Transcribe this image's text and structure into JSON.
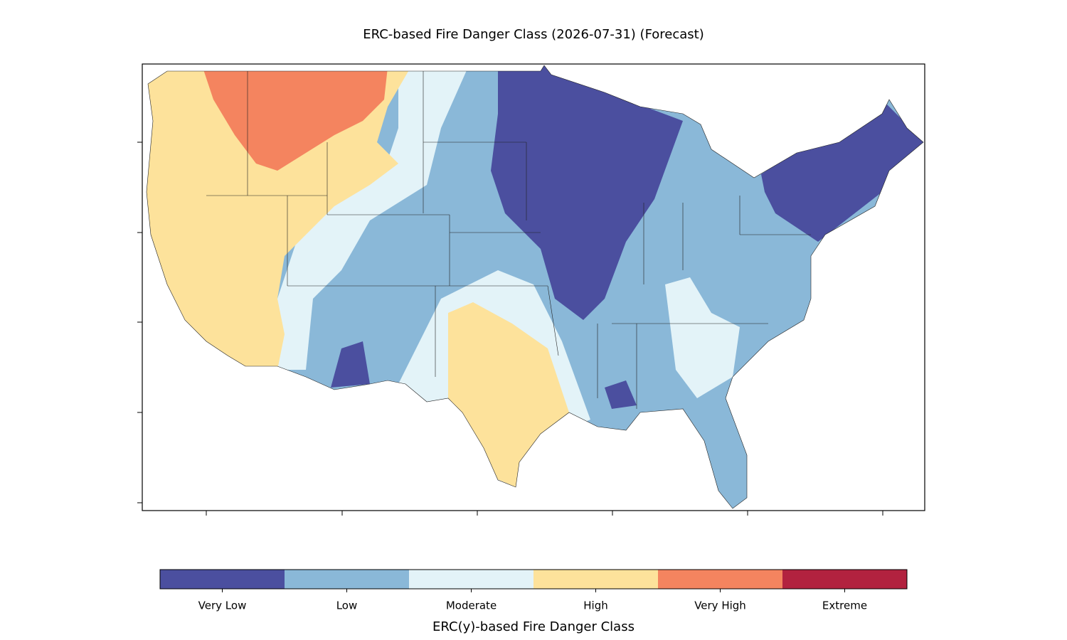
{
  "title": "ERC-based Fire Danger Class (2026-07-31) (Forecast)",
  "colorbar": {
    "label": "ERC(y)-based Fire Danger Class",
    "classes": [
      {
        "name": "Very Low",
        "color": "#4b4f9f"
      },
      {
        "name": "Low",
        "color": "#8ab8d8"
      },
      {
        "name": "Moderate",
        "color": "#e3f3f8"
      },
      {
        "name": "High",
        "color": "#fde29b"
      },
      {
        "name": "Very High",
        "color": "#f4845f"
      },
      {
        "name": "Extreme",
        "color": "#b2223f"
      }
    ]
  }
}
